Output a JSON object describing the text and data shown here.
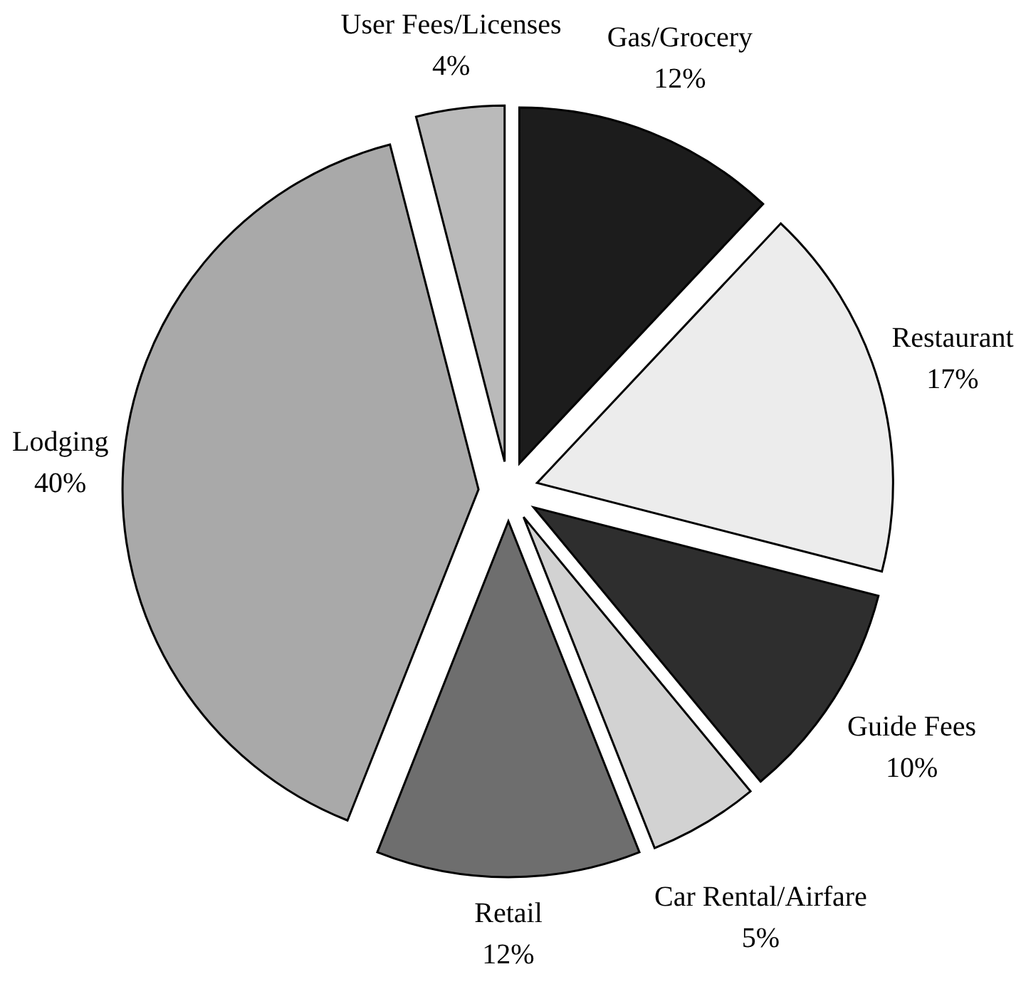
{
  "chart_data": {
    "type": "pie",
    "categories": [
      "Gas/Grocery",
      "Restaurant",
      "Guide Fees",
      "Car Rental/Airfare",
      "Retail",
      "Lodging",
      "User Fees/Licenses"
    ],
    "values": [
      12,
      17,
      10,
      5,
      12,
      40,
      4
    ],
    "value_labels": [
      "12%",
      "17%",
      "10%",
      "5%",
      "12%",
      "40%",
      "4%"
    ],
    "colors": [
      "#1c1c1c",
      "#ececec",
      "#2e2e2e",
      "#d2d2d2",
      "#6e6e6e",
      "#a9a9a9",
      "#bababa"
    ]
  }
}
